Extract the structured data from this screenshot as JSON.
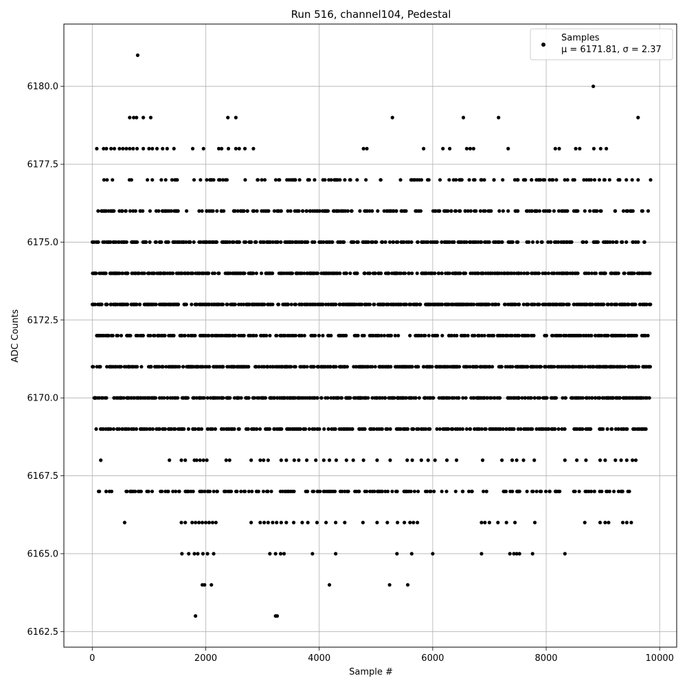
{
  "chart_data": {
    "type": "scatter",
    "title": "Run 516, channel104, Pedestal",
    "xlabel": "Sample #",
    "ylabel": "ADC Counts",
    "xlim": [
      -500,
      10300
    ],
    "ylim": [
      6162.0,
      6182.0
    ],
    "xticks": [
      0,
      2000,
      4000,
      6000,
      8000,
      10000
    ],
    "yticks": [
      6162.5,
      6165.0,
      6167.5,
      6170.0,
      6172.5,
      6175.0,
      6177.5,
      6180.0
    ],
    "xtick_labels": [
      "0",
      "2000",
      "4000",
      "6000",
      "8000",
      "10000"
    ],
    "ytick_labels": [
      "6162.5",
      "6165.0",
      "6167.5",
      "6170.0",
      "6172.5",
      "6175.0",
      "6177.5",
      "6180.0"
    ],
    "grid": true,
    "legend": {
      "position": "top-right",
      "entry_name": "Samples",
      "entry_stats": "μ = 6171.81, σ = 2.37"
    },
    "marker_color": "#000000",
    "series": [
      {
        "name": "Samples",
        "band_points": [
          {
            "y": 6173,
            "x_start": 0,
            "x_end": 9840,
            "n": 520
          },
          {
            "y": 6171,
            "x_start": 0,
            "x_end": 9840,
            "n": 500
          },
          {
            "y": 6174,
            "x_start": 0,
            "x_end": 9840,
            "n": 420
          },
          {
            "y": 6170,
            "x_start": 0,
            "x_end": 9840,
            "n": 420
          },
          {
            "y": 6172,
            "x_start": 0,
            "x_end": 9840,
            "n": 330
          },
          {
            "y": 6169,
            "x_start": 0,
            "x_end": 9840,
            "n": 330
          },
          {
            "y": 6175,
            "x_start": 0,
            "x_end": 9840,
            "n": 330
          },
          {
            "y": 6176,
            "x_start": 0,
            "x_end": 9840,
            "n": 230
          },
          {
            "y": 6167,
            "x_start": 80,
            "x_end": 9550,
            "n": 190
          },
          {
            "y": 6177,
            "x_start": 80,
            "x_end": 9840,
            "n": 130
          }
        ],
        "points": [
          [
            800,
            6181
          ],
          [
            8830,
            6180
          ],
          [
            660,
            6179
          ],
          [
            730,
            6179
          ],
          [
            780,
            6179
          ],
          [
            900,
            6179
          ],
          [
            1030,
            6179
          ],
          [
            2390,
            6179
          ],
          [
            2530,
            6179
          ],
          [
            5290,
            6179
          ],
          [
            6540,
            6179
          ],
          [
            7160,
            6179
          ],
          [
            9620,
            6179
          ],
          [
            80,
            6178
          ],
          [
            200,
            6178
          ],
          [
            250,
            6178
          ],
          [
            330,
            6178
          ],
          [
            390,
            6178
          ],
          [
            480,
            6178
          ],
          [
            540,
            6178
          ],
          [
            600,
            6178
          ],
          [
            660,
            6178
          ],
          [
            720,
            6178
          ],
          [
            790,
            6178
          ],
          [
            900,
            6178
          ],
          [
            1000,
            6178
          ],
          [
            1060,
            6178
          ],
          [
            1140,
            6178
          ],
          [
            1240,
            6178
          ],
          [
            1320,
            6178
          ],
          [
            1440,
            6178
          ],
          [
            1770,
            6178
          ],
          [
            1960,
            6178
          ],
          [
            2230,
            6178
          ],
          [
            2280,
            6178
          ],
          [
            2400,
            6178
          ],
          [
            2530,
            6178
          ],
          [
            2590,
            6178
          ],
          [
            2690,
            6178
          ],
          [
            2840,
            6178
          ],
          [
            4780,
            6178
          ],
          [
            4840,
            6178
          ],
          [
            5840,
            6178
          ],
          [
            6180,
            6178
          ],
          [
            6300,
            6178
          ],
          [
            6600,
            6178
          ],
          [
            6660,
            6178
          ],
          [
            6720,
            6178
          ],
          [
            7330,
            6178
          ],
          [
            8160,
            6178
          ],
          [
            8230,
            6178
          ],
          [
            8520,
            6178
          ],
          [
            8590,
            6178
          ],
          [
            8840,
            6178
          ],
          [
            8960,
            6178
          ],
          [
            9060,
            6178
          ],
          [
            150,
            6168
          ],
          [
            1360,
            6168
          ],
          [
            1570,
            6168
          ],
          [
            1640,
            6168
          ],
          [
            1800,
            6168
          ],
          [
            1840,
            6168
          ],
          [
            1900,
            6168
          ],
          [
            1960,
            6168
          ],
          [
            2020,
            6168
          ],
          [
            2360,
            6168
          ],
          [
            2420,
            6168
          ],
          [
            2800,
            6168
          ],
          [
            2960,
            6168
          ],
          [
            3020,
            6168
          ],
          [
            3100,
            6168
          ],
          [
            3330,
            6168
          ],
          [
            3420,
            6168
          ],
          [
            3560,
            6168
          ],
          [
            3640,
            6168
          ],
          [
            3780,
            6168
          ],
          [
            3940,
            6168
          ],
          [
            4080,
            6168
          ],
          [
            4180,
            6168
          ],
          [
            4300,
            6168
          ],
          [
            4480,
            6168
          ],
          [
            4600,
            6168
          ],
          [
            4780,
            6168
          ],
          [
            5020,
            6168
          ],
          [
            5250,
            6168
          ],
          [
            5550,
            6168
          ],
          [
            5640,
            6168
          ],
          [
            5800,
            6168
          ],
          [
            5920,
            6168
          ],
          [
            6040,
            6168
          ],
          [
            6250,
            6168
          ],
          [
            6420,
            6168
          ],
          [
            6880,
            6168
          ],
          [
            7220,
            6168
          ],
          [
            7400,
            6168
          ],
          [
            7480,
            6168
          ],
          [
            7600,
            6168
          ],
          [
            7790,
            6168
          ],
          [
            8330,
            6168
          ],
          [
            8540,
            6168
          ],
          [
            8700,
            6168
          ],
          [
            8950,
            6168
          ],
          [
            9040,
            6168
          ],
          [
            9220,
            6168
          ],
          [
            9320,
            6168
          ],
          [
            9420,
            6168
          ],
          [
            9520,
            6168
          ],
          [
            9580,
            6168
          ],
          [
            570,
            6166
          ],
          [
            1570,
            6166
          ],
          [
            1640,
            6166
          ],
          [
            1760,
            6166
          ],
          [
            1820,
            6166
          ],
          [
            1880,
            6166
          ],
          [
            1940,
            6166
          ],
          [
            2000,
            6166
          ],
          [
            2060,
            6166
          ],
          [
            2120,
            6166
          ],
          [
            2180,
            6166
          ],
          [
            2800,
            6166
          ],
          [
            2960,
            6166
          ],
          [
            3030,
            6166
          ],
          [
            3100,
            6166
          ],
          [
            3180,
            6166
          ],
          [
            3250,
            6166
          ],
          [
            3330,
            6166
          ],
          [
            3420,
            6166
          ],
          [
            3550,
            6166
          ],
          [
            3700,
            6166
          ],
          [
            3800,
            6166
          ],
          [
            3960,
            6166
          ],
          [
            4120,
            6166
          ],
          [
            4290,
            6166
          ],
          [
            4450,
            6166
          ],
          [
            4770,
            6166
          ],
          [
            5020,
            6166
          ],
          [
            5200,
            6166
          ],
          [
            5380,
            6166
          ],
          [
            5500,
            6166
          ],
          [
            5600,
            6166
          ],
          [
            5660,
            6166
          ],
          [
            5730,
            6166
          ],
          [
            6860,
            6166
          ],
          [
            6920,
            6166
          ],
          [
            7000,
            6166
          ],
          [
            7150,
            6166
          ],
          [
            7300,
            6166
          ],
          [
            7450,
            6166
          ],
          [
            7800,
            6166
          ],
          [
            8680,
            6166
          ],
          [
            8950,
            6166
          ],
          [
            9040,
            6166
          ],
          [
            9100,
            6166
          ],
          [
            9350,
            6166
          ],
          [
            9420,
            6166
          ],
          [
            9500,
            6166
          ],
          [
            1580,
            6165
          ],
          [
            1700,
            6165
          ],
          [
            1800,
            6165
          ],
          [
            1860,
            6165
          ],
          [
            1950,
            6165
          ],
          [
            2030,
            6165
          ],
          [
            2140,
            6165
          ],
          [
            3130,
            6165
          ],
          [
            3230,
            6165
          ],
          [
            3320,
            6165
          ],
          [
            3380,
            6165
          ],
          [
            3880,
            6165
          ],
          [
            4290,
            6165
          ],
          [
            5370,
            6165
          ],
          [
            5630,
            6165
          ],
          [
            6000,
            6165
          ],
          [
            6860,
            6165
          ],
          [
            7360,
            6165
          ],
          [
            7430,
            6165
          ],
          [
            7480,
            6165
          ],
          [
            7530,
            6165
          ],
          [
            7760,
            6165
          ],
          [
            8330,
            6165
          ],
          [
            1940,
            6164
          ],
          [
            1980,
            6164
          ],
          [
            2100,
            6164
          ],
          [
            4180,
            6164
          ],
          [
            5240,
            6164
          ],
          [
            5560,
            6164
          ],
          [
            1820,
            6163
          ],
          [
            3230,
            6163
          ],
          [
            3260,
            6163
          ]
        ]
      }
    ]
  }
}
